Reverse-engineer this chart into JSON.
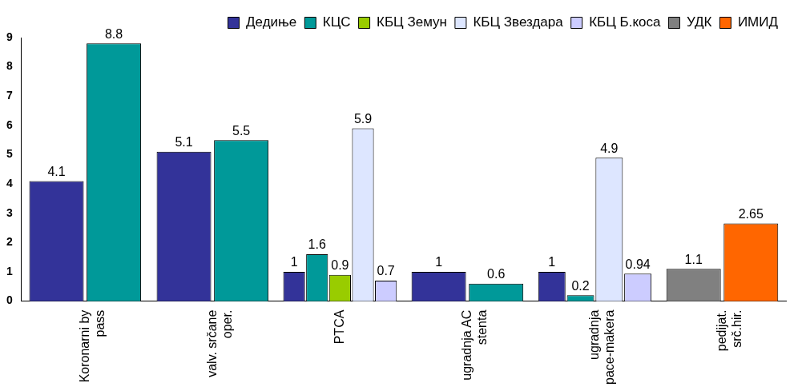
{
  "chart_data": {
    "type": "bar",
    "categories": [
      "Koronarni by pass",
      "valv. srčane oper.",
      "PTCA",
      "ugradnja AC stenta",
      "ugradnja pace-makera",
      "pedijat. srč.hir."
    ],
    "series": [
      {
        "name": "Дедиње",
        "color": "#333399",
        "values": [
          4.1,
          5.1,
          1,
          1,
          1,
          null
        ]
      },
      {
        "name": "КЦС",
        "color": "#009999",
        "values": [
          8.8,
          5.5,
          1.6,
          0.6,
          0.2,
          null
        ]
      },
      {
        "name": "КБЦ Земун",
        "color": "#99cc00",
        "values": [
          null,
          null,
          0.9,
          null,
          null,
          null
        ]
      },
      {
        "name": "КБЦ Звездара",
        "color": "#dde6ff",
        "values": [
          null,
          null,
          5.9,
          null,
          4.9,
          null
        ]
      },
      {
        "name": "КБЦ Б.коса",
        "color": "#ccccff",
        "values": [
          null,
          null,
          0.7,
          null,
          0.94,
          null
        ]
      },
      {
        "name": "УДК",
        "color": "#808080",
        "values": [
          null,
          null,
          null,
          null,
          null,
          1.1
        ]
      },
      {
        "name": "ИМИД",
        "color": "#ff6600",
        "values": [
          null,
          null,
          null,
          null,
          null,
          2.65
        ]
      }
    ],
    "ylim": [
      0,
      9
    ],
    "yticks": [
      0,
      1,
      2,
      3,
      4,
      5,
      6,
      7,
      8,
      9
    ],
    "grid": false,
    "legend": "top right",
    "data_labels": true
  }
}
